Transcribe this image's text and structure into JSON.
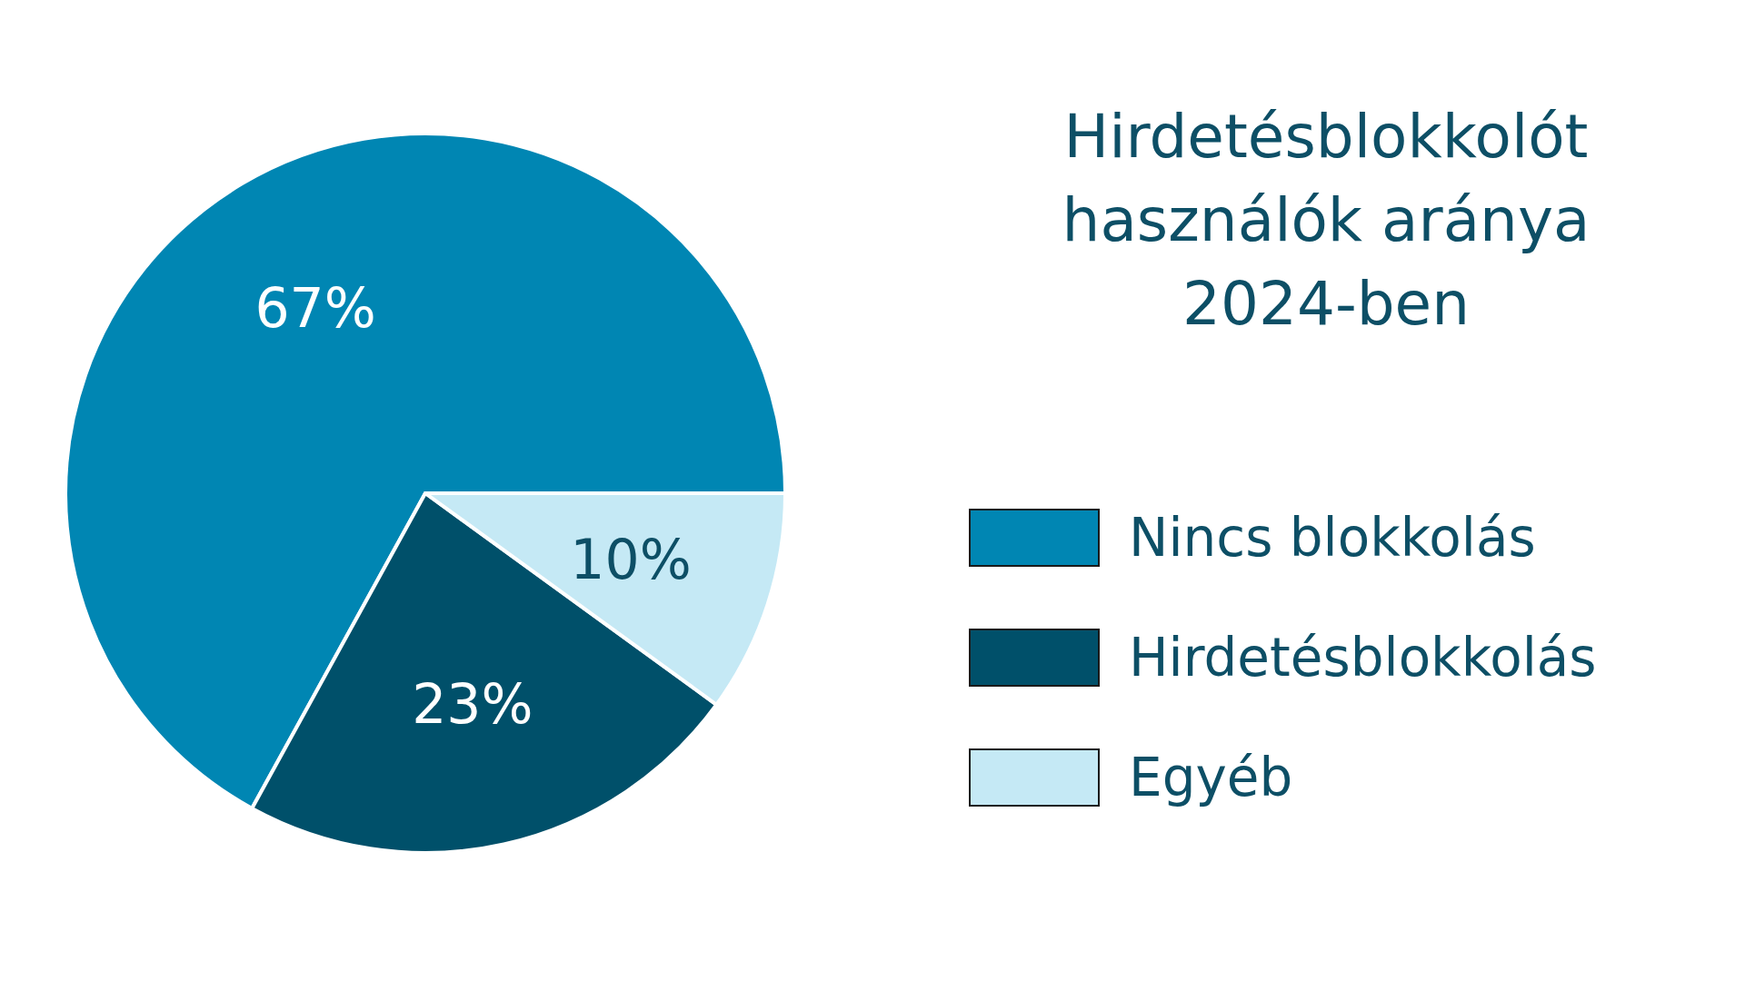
{
  "chart_data": {
    "type": "pie",
    "title": "Hirdetésblokkolót használók aránya 2024-ben",
    "categories": [
      "Nincs blokkolás",
      "Hirdetésblokkolás",
      "Egyéb"
    ],
    "values": [
      67,
      23,
      10
    ],
    "colors": [
      "#0086b3",
      "#00506a",
      "#c5e9f5"
    ],
    "value_labels": [
      "67%",
      "23%",
      "10%"
    ],
    "legend": "right"
  }
}
